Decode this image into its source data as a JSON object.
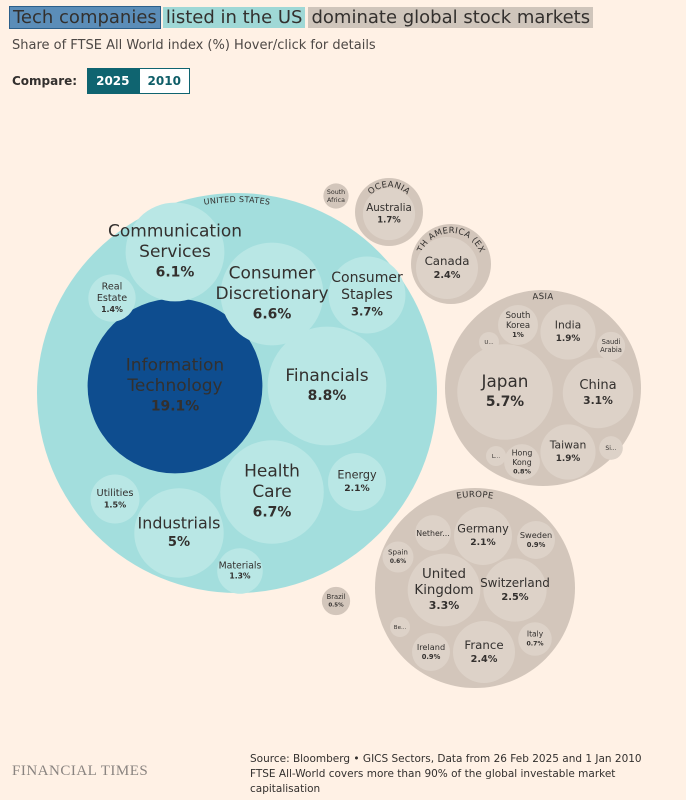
{
  "chart_data": {
    "type": "packed-bubble",
    "title_parts": [
      {
        "text": "Tech companies",
        "color": "#5b8db8"
      },
      {
        "text": "listed in the US",
        "color": "#9fd8d6"
      },
      {
        "text": "dominate global stock markets",
        "color": "#cfc5bb"
      }
    ],
    "subtitle": "Share of FTSE All World index (%) Hover/click for details",
    "compare_label": "Compare:",
    "compare_options": [
      "2025",
      "2010"
    ],
    "active_option": 0,
    "groups": [
      {
        "name": "UNITED STATES",
        "color": "#a3dedd",
        "child_color": "#b9e7e5",
        "highlight_color": "#0e4d8f",
        "children": [
          {
            "name": "Information Technology",
            "value": 19.1,
            "value_label": "19.1%",
            "highlight": true
          },
          {
            "name": "Financials",
            "value": 8.8,
            "value_label": "8.8%"
          },
          {
            "name": "Health Care",
            "value": 6.7,
            "value_label": "6.7%"
          },
          {
            "name": "Consumer Discretionary",
            "value": 6.6,
            "value_label": "6.6%"
          },
          {
            "name": "Communication Services",
            "value": 6.1,
            "value_label": "6.1%"
          },
          {
            "name": "Industrials",
            "value": 5,
            "value_label": "5%"
          },
          {
            "name": "Consumer Staples",
            "value": 3.7,
            "value_label": "3.7%"
          },
          {
            "name": "Energy",
            "value": 2.1,
            "value_label": "2.1%"
          },
          {
            "name": "Utilities",
            "value": 1.5,
            "value_label": "1.5%"
          },
          {
            "name": "Real Estate",
            "value": 1.4,
            "value_label": "1.4%"
          },
          {
            "name": "Materials",
            "value": 1.3,
            "value_label": "1.3%"
          }
        ]
      },
      {
        "color": "#d3c6bb",
        "child_color": "#ddd2c8",
        "children": [
          {
            "name": "South Africa",
            "value": 0.4
          }
        ]
      },
      {
        "name": "OCEANIA",
        "color": "#d3c6bb",
        "child_color": "#ddd2c8",
        "children": [
          {
            "name": "Australia",
            "value": 1.7,
            "value_label": "1.7%"
          }
        ]
      },
      {
        "name": "NORTH AMERICA (EX US)",
        "color": "#d3c6bb",
        "child_color": "#ddd2c8",
        "children": [
          {
            "name": "Canada",
            "value": 2.4,
            "value_label": "2.4%"
          }
        ]
      },
      {
        "name": "ASIA",
        "color": "#d3c6bb",
        "child_color": "#ddd2c8",
        "children": [
          {
            "name": "Japan",
            "value": 5.7,
            "value_label": "5.7%"
          },
          {
            "name": "China",
            "value": 3.1,
            "value_label": "3.1%"
          },
          {
            "name": "India",
            "value": 1.9,
            "value_label": "1.9%"
          },
          {
            "name": "Taiwan",
            "value": 1.9,
            "value_label": "1.9%"
          },
          {
            "name": "South Korea",
            "value": 1,
            "value_label": "1%"
          },
          {
            "name": "Hong Kong",
            "value": 0.8,
            "value_label": "0.8%"
          },
          {
            "name": "Saudi Arabia",
            "value": 0.5
          },
          {
            "name": "U...",
            "value": 0.25
          },
          {
            "name": "L...",
            "value": 0.25
          },
          {
            "name": "Si...",
            "value": 0.35
          }
        ]
      },
      {
        "name": "EUROPE",
        "color": "#d3c6bb",
        "child_color": "#ddd2c8",
        "children": [
          {
            "name": "United Kingdom",
            "value": 3.3,
            "value_label": "3.3%"
          },
          {
            "name": "Switzerland",
            "value": 2.5,
            "value_label": "2.5%"
          },
          {
            "name": "France",
            "value": 2.4,
            "value_label": "2.4%"
          },
          {
            "name": "Germany",
            "value": 2.1,
            "value_label": "2.1%"
          },
          {
            "name": "Ireland",
            "value": 0.9,
            "value_label": "0.9%"
          },
          {
            "name": "Sweden",
            "value": 0.9,
            "value_label": "0.9%"
          },
          {
            "name": "Italy",
            "value": 0.7,
            "value_label": "0.7%"
          },
          {
            "name": "Spain",
            "value": 0.6,
            "value_label": "0.6%"
          },
          {
            "name": "Nether...",
            "value": 0.8
          },
          {
            "name": "Be...",
            "value": 0.25
          }
        ]
      },
      {
        "color": "#d3c6bb",
        "child_color": "#ddd2c8",
        "children": [
          {
            "name": "Brazil",
            "value": 0.5,
            "value_label": "0.5%"
          }
        ]
      }
    ],
    "source": "Source: Bloomberg • GICS Sectors, Data from 26 Feb 2025 and 1 Jan 2010",
    "note": "FTSE All-World covers more than 90% of the global investable market capitalisation",
    "publisher": "FINANCIAL TIMES"
  }
}
